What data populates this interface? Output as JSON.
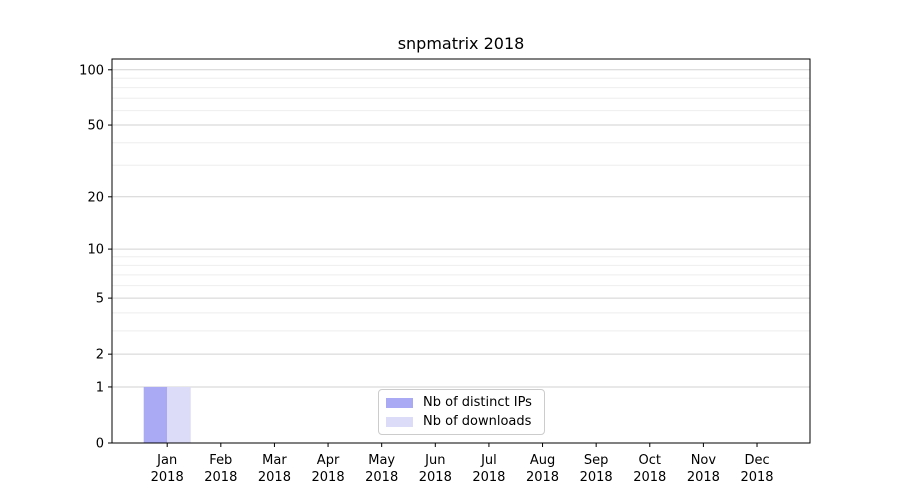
{
  "chart_data": {
    "type": "bar",
    "title": "snpmatrix 2018",
    "xlabel": "",
    "ylabel": "",
    "categories": [
      "Jan",
      "Feb",
      "Mar",
      "Apr",
      "May",
      "Jun",
      "Jul",
      "Aug",
      "Sep",
      "Oct",
      "Nov",
      "Dec"
    ],
    "x_tick_second_line": "2018",
    "series": [
      {
        "name": "Nb of distinct IPs",
        "color": "#a9a9f4",
        "values": [
          1,
          0,
          0,
          0,
          0,
          0,
          0,
          0,
          0,
          0,
          0,
          0
        ]
      },
      {
        "name": "Nb of downloads",
        "color": "#dcdcf9",
        "values": [
          1,
          0,
          0,
          0,
          0,
          0,
          0,
          0,
          0,
          0,
          0,
          0
        ]
      }
    ],
    "y_scale": "log1p",
    "y_major_ticks": [
      0,
      1,
      2,
      5,
      10,
      20,
      50,
      100
    ],
    "y_minor_gridlines": [
      3,
      4,
      6,
      7,
      8,
      9,
      30,
      40,
      60,
      70,
      80,
      90
    ],
    "ylim": [
      0,
      114
    ],
    "grid": "horizontal",
    "legend_position": "lower-center-inside",
    "colors": {
      "major_grid": "#d2d2d2",
      "minor_grid": "#eeeeee",
      "spine": "#000000",
      "tick_text": "#000000",
      "background": "#ffffff"
    }
  }
}
